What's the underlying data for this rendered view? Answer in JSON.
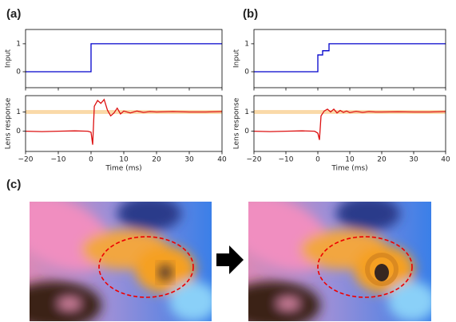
{
  "panel_labels": [
    "(a)",
    "(b)",
    "(c)"
  ],
  "chart_data": [
    {
      "type": "line",
      "ylabel": "Input",
      "xlim": [
        -20,
        40
      ],
      "xticks": [
        -20,
        -10,
        0,
        10,
        20,
        30,
        40
      ],
      "ylim": [
        -0.57,
        1.51
      ],
      "yticks": [
        0,
        1
      ],
      "x": [
        -20,
        0,
        0,
        40
      ],
      "series": [
        {
          "color": "#0000cc",
          "values": [
            0,
            0,
            1,
            1
          ]
        }
      ]
    },
    {
      "type": "line",
      "ylabel": "Lens response",
      "xlabel": "Time (ms)",
      "xlim": [
        -20,
        40
      ],
      "xticks": [
        {
          "value": -20,
          "label": "−20"
        },
        {
          "value": -10,
          "label": "−10"
        },
        0,
        10,
        20,
        30,
        40
      ],
      "ylim": [
        -1.05,
        1.85
      ],
      "yticks": [
        0,
        1
      ],
      "shaded_band": {
        "range": [
          0.9,
          1.1
        ],
        "color": "#fad9a8"
      },
      "x": [
        -20,
        -15,
        -10,
        -5,
        -1,
        0,
        0.5,
        1,
        2,
        3,
        4,
        5,
        6,
        7,
        8,
        9,
        10,
        12,
        14,
        16,
        18,
        20,
        25,
        30,
        35,
        40
      ],
      "series": [
        {
          "color": "#dd1111",
          "values": [
            0.0,
            -0.02,
            0.0,
            0.02,
            0.0,
            -0.05,
            -0.7,
            1.3,
            1.6,
            1.45,
            1.65,
            1.1,
            0.8,
            0.95,
            1.2,
            0.9,
            1.05,
            0.95,
            1.05,
            0.98,
            1.02,
            1.0,
            1.02,
            1.0,
            1.0,
            1.02
          ]
        }
      ]
    },
    {
      "type": "line",
      "ylabel": "Input",
      "xlim": [
        -20,
        40
      ],
      "xticks": [
        -20,
        -10,
        0,
        10,
        20,
        30,
        40
      ],
      "ylim": [
        -0.57,
        1.51
      ],
      "yticks": [
        0,
        1
      ],
      "x": [
        -20,
        0,
        0,
        1.5,
        1.5,
        3.5,
        3.5,
        40
      ],
      "series": [
        {
          "color": "#0000cc",
          "values": [
            0,
            0,
            0.6,
            0.6,
            0.75,
            0.75,
            1,
            1
          ]
        }
      ]
    },
    {
      "type": "line",
      "ylabel": "Lens response",
      "xlabel": "Time (ms)",
      "xlim": [
        -20,
        40
      ],
      "xticks": [
        {
          "value": -20,
          "label": "−20"
        },
        {
          "value": -10,
          "label": "−10"
        },
        0,
        10,
        20,
        30,
        40
      ],
      "ylim": [
        -1.05,
        1.85
      ],
      "yticks": [
        0,
        1
      ],
      "shaded_band": {
        "range": [
          0.9,
          1.1
        ],
        "color": "#fad9a8"
      },
      "x": [
        -20,
        -15,
        -10,
        -5,
        -1,
        0,
        0.5,
        1,
        2,
        3,
        4,
        5,
        6,
        7,
        8,
        9,
        10,
        12,
        14,
        16,
        18,
        20,
        25,
        30,
        35,
        40
      ],
      "series": [
        {
          "color": "#dd1111",
          "values": [
            0.0,
            -0.02,
            0.0,
            0.02,
            0.0,
            -0.1,
            -0.45,
            0.8,
            1.05,
            1.15,
            1.0,
            1.15,
            0.95,
            1.08,
            0.98,
            1.05,
            0.97,
            1.03,
            0.98,
            1.02,
            1.0,
            1.0,
            1.01,
            1.0,
            1.0,
            1.02
          ]
        }
      ]
    }
  ]
}
